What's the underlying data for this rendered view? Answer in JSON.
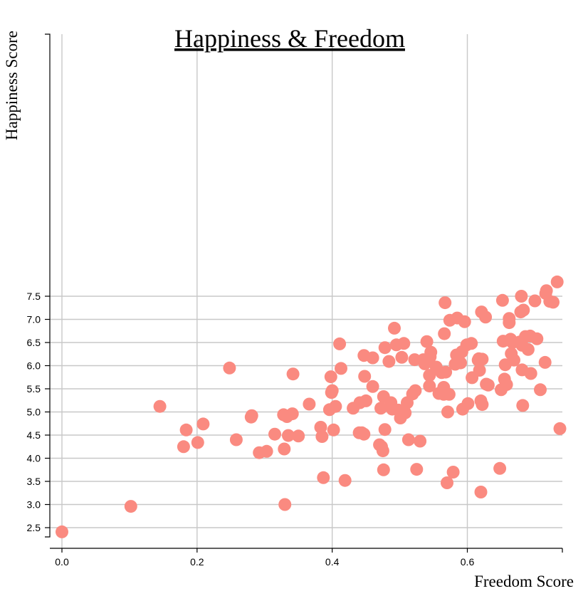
{
  "chart_data": {
    "type": "scatter",
    "title": "Happiness & Freedom",
    "xlabel": "Freedom Score",
    "ylabel": "Happiness Score",
    "xlim": [
      -0.017,
      0.74
    ],
    "ylim": [
      2.35,
      7.85
    ],
    "xticks": [
      0.0,
      0.2,
      0.4,
      0.6
    ],
    "yticks": [
      2.5,
      3.0,
      3.5,
      4.0,
      4.5,
      5.0,
      5.5,
      6.0,
      6.5,
      7.0,
      7.5
    ],
    "grid": true,
    "point_color": "#fa8a80",
    "points": [
      [
        0.0,
        2.41
      ],
      [
        0.102,
        2.96
      ],
      [
        0.145,
        5.12
      ],
      [
        0.18,
        4.25
      ],
      [
        0.184,
        4.61
      ],
      [
        0.201,
        4.34
      ],
      [
        0.209,
        4.74
      ],
      [
        0.248,
        5.95
      ],
      [
        0.258,
        4.4
      ],
      [
        0.28,
        4.89
      ],
      [
        0.281,
        4.92
      ],
      [
        0.292,
        4.12
      ],
      [
        0.303,
        4.15
      ],
      [
        0.315,
        4.52
      ],
      [
        0.328,
        4.94
      ],
      [
        0.329,
        4.2
      ],
      [
        0.33,
        3.0
      ],
      [
        0.333,
        4.9
      ],
      [
        0.335,
        4.49
      ],
      [
        0.341,
        4.96
      ],
      [
        0.342,
        5.82
      ],
      [
        0.35,
        4.48
      ],
      [
        0.366,
        5.17
      ],
      [
        0.383,
        4.67
      ],
      [
        0.385,
        4.47
      ],
      [
        0.387,
        3.58
      ],
      [
        0.396,
        5.05
      ],
      [
        0.398,
        5.76
      ],
      [
        0.399,
        5.42
      ],
      [
        0.4,
        5.46
      ],
      [
        0.402,
        4.61
      ],
      [
        0.405,
        5.12
      ],
      [
        0.411,
        6.47
      ],
      [
        0.413,
        5.94
      ],
      [
        0.419,
        3.52
      ],
      [
        0.431,
        5.08
      ],
      [
        0.44,
        4.55
      ],
      [
        0.441,
        5.2
      ],
      [
        0.444,
        4.55
      ],
      [
        0.447,
        4.52
      ],
      [
        0.447,
        6.22
      ],
      [
        0.448,
        5.77
      ],
      [
        0.45,
        5.24
      ],
      [
        0.46,
        6.17
      ],
      [
        0.46,
        5.55
      ],
      [
        0.47,
        4.29
      ],
      [
        0.472,
        5.08
      ],
      [
        0.473,
        4.25
      ],
      [
        0.475,
        4.16
      ],
      [
        0.476,
        3.75
      ],
      [
        0.476,
        5.33
      ],
      [
        0.478,
        6.39
      ],
      [
        0.478,
        4.62
      ],
      [
        0.484,
        6.09
      ],
      [
        0.487,
        5.2
      ],
      [
        0.489,
        5.06
      ],
      [
        0.492,
        6.81
      ],
      [
        0.495,
        6.45
      ],
      [
        0.498,
        5.04
      ],
      [
        0.501,
        4.87
      ],
      [
        0.503,
        6.18
      ],
      [
        0.506,
        6.48
      ],
      [
        0.508,
        4.98
      ],
      [
        0.511,
        5.2
      ],
      [
        0.513,
        4.4
      ],
      [
        0.519,
        5.39
      ],
      [
        0.522,
        6.13
      ],
      [
        0.523,
        5.46
      ],
      [
        0.525,
        3.76
      ],
      [
        0.53,
        4.37
      ],
      [
        0.535,
        6.13
      ],
      [
        0.537,
        6.04
      ],
      [
        0.54,
        6.52
      ],
      [
        0.541,
        6.1
      ],
      [
        0.544,
        5.79
      ],
      [
        0.544,
        5.56
      ],
      [
        0.545,
        6.19
      ],
      [
        0.546,
        6.29
      ],
      [
        0.554,
        5.97
      ],
      [
        0.558,
        5.4
      ],
      [
        0.562,
        5.85
      ],
      [
        0.565,
        5.38
      ],
      [
        0.565,
        5.53
      ],
      [
        0.566,
        6.69
      ],
      [
        0.567,
        7.36
      ],
      [
        0.568,
        5.86
      ],
      [
        0.57,
        3.47
      ],
      [
        0.571,
        5.0
      ],
      [
        0.573,
        5.38
      ],
      [
        0.574,
        6.98
      ],
      [
        0.579,
        3.7
      ],
      [
        0.582,
        6.03
      ],
      [
        0.584,
        6.23
      ],
      [
        0.585,
        7.03
      ],
      [
        0.59,
        6.06
      ],
      [
        0.592,
        6.3
      ],
      [
        0.593,
        5.06
      ],
      [
        0.596,
        6.95
      ],
      [
        0.599,
        6.45
      ],
      [
        0.601,
        5.18
      ],
      [
        0.606,
        6.48
      ],
      [
        0.607,
        5.74
      ],
      [
        0.616,
        6.12
      ],
      [
        0.617,
        6.15
      ],
      [
        0.618,
        5.9
      ],
      [
        0.62,
        3.27
      ],
      [
        0.62,
        5.24
      ],
      [
        0.621,
        7.16
      ],
      [
        0.622,
        5.16
      ],
      [
        0.622,
        6.14
      ],
      [
        0.627,
        7.05
      ],
      [
        0.628,
        5.6
      ],
      [
        0.631,
        5.58
      ],
      [
        0.648,
        3.78
      ],
      [
        0.65,
        5.48
      ],
      [
        0.652,
        7.41
      ],
      [
        0.653,
        6.53
      ],
      [
        0.655,
        5.71
      ],
      [
        0.656,
        6.02
      ],
      [
        0.658,
        5.59
      ],
      [
        0.662,
        7.02
      ],
      [
        0.662,
        6.93
      ],
      [
        0.664,
        6.57
      ],
      [
        0.665,
        6.26
      ],
      [
        0.667,
        6.5
      ],
      [
        0.669,
        6.12
      ],
      [
        0.677,
        6.51
      ],
      [
        0.679,
        7.16
      ],
      [
        0.68,
        7.5
      ],
      [
        0.681,
        5.91
      ],
      [
        0.681,
        6.44
      ],
      [
        0.682,
        5.14
      ],
      [
        0.683,
        7.2
      ],
      [
        0.686,
        6.63
      ],
      [
        0.69,
        6.35
      ],
      [
        0.693,
        6.64
      ],
      [
        0.694,
        5.83
      ],
      [
        0.7,
        7.4
      ],
      [
        0.703,
        6.58
      ],
      [
        0.708,
        5.48
      ],
      [
        0.715,
        6.07
      ],
      [
        0.716,
        7.56
      ],
      [
        0.717,
        7.62
      ],
      [
        0.722,
        7.39
      ],
      [
        0.727,
        7.37
      ],
      [
        0.733,
        7.81
      ],
      [
        0.737,
        4.64
      ]
    ]
  }
}
